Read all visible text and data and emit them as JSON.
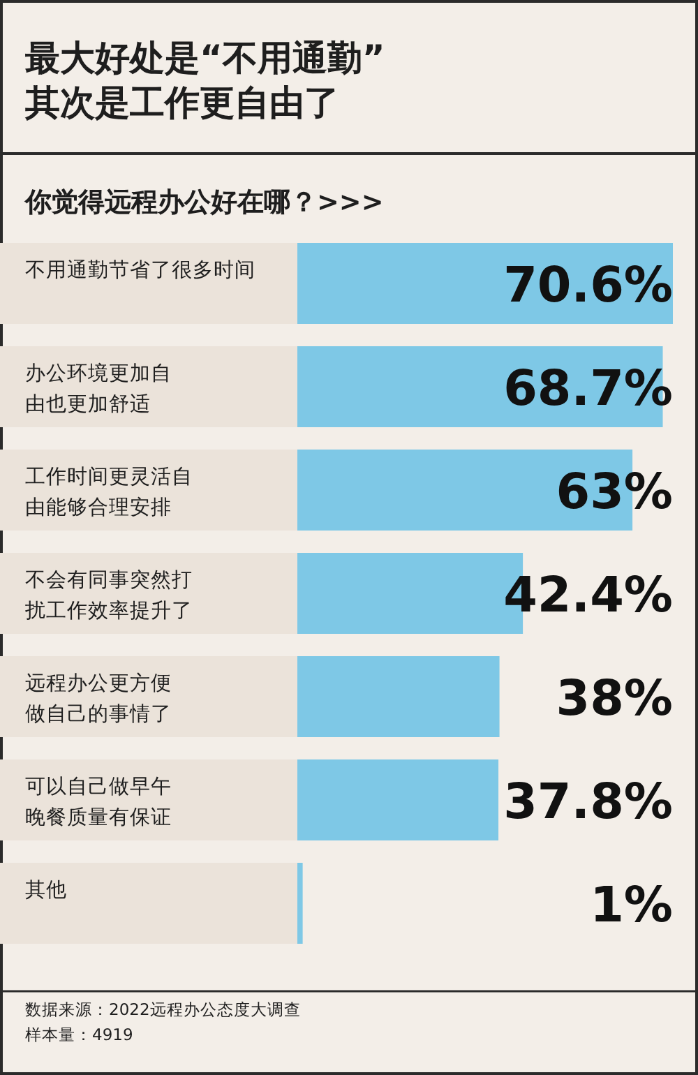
{
  "chart_data": {
    "type": "bar",
    "orientation": "horizontal",
    "title": "最大好处是“不用通勤”\n其次是工作更自由了",
    "subtitle": "你觉得远程办公好在哪？>>>",
    "categories": [
      "不用通勤节省了很多时间",
      "办公环境更加自由也更加舒适",
      "工作时间更灵活自由能够合理安排",
      "不会有同事突然打扰工作效率提升了",
      "远程办公更方便做自己的事情了",
      "可以自己做早午晚餐质量有保证",
      "其他"
    ],
    "values": [
      70.6,
      68.7,
      63,
      42.4,
      38,
      37.8,
      1
    ],
    "value_labels": [
      "70.6%",
      "68.7%",
      "63%",
      "42.4%",
      "38%",
      "37.8%",
      "1%"
    ],
    "color": "#7ec8e6",
    "annotations": [
      "数据来源：2022远程办公态度大调查",
      "样本量：4919"
    ]
  }
}
